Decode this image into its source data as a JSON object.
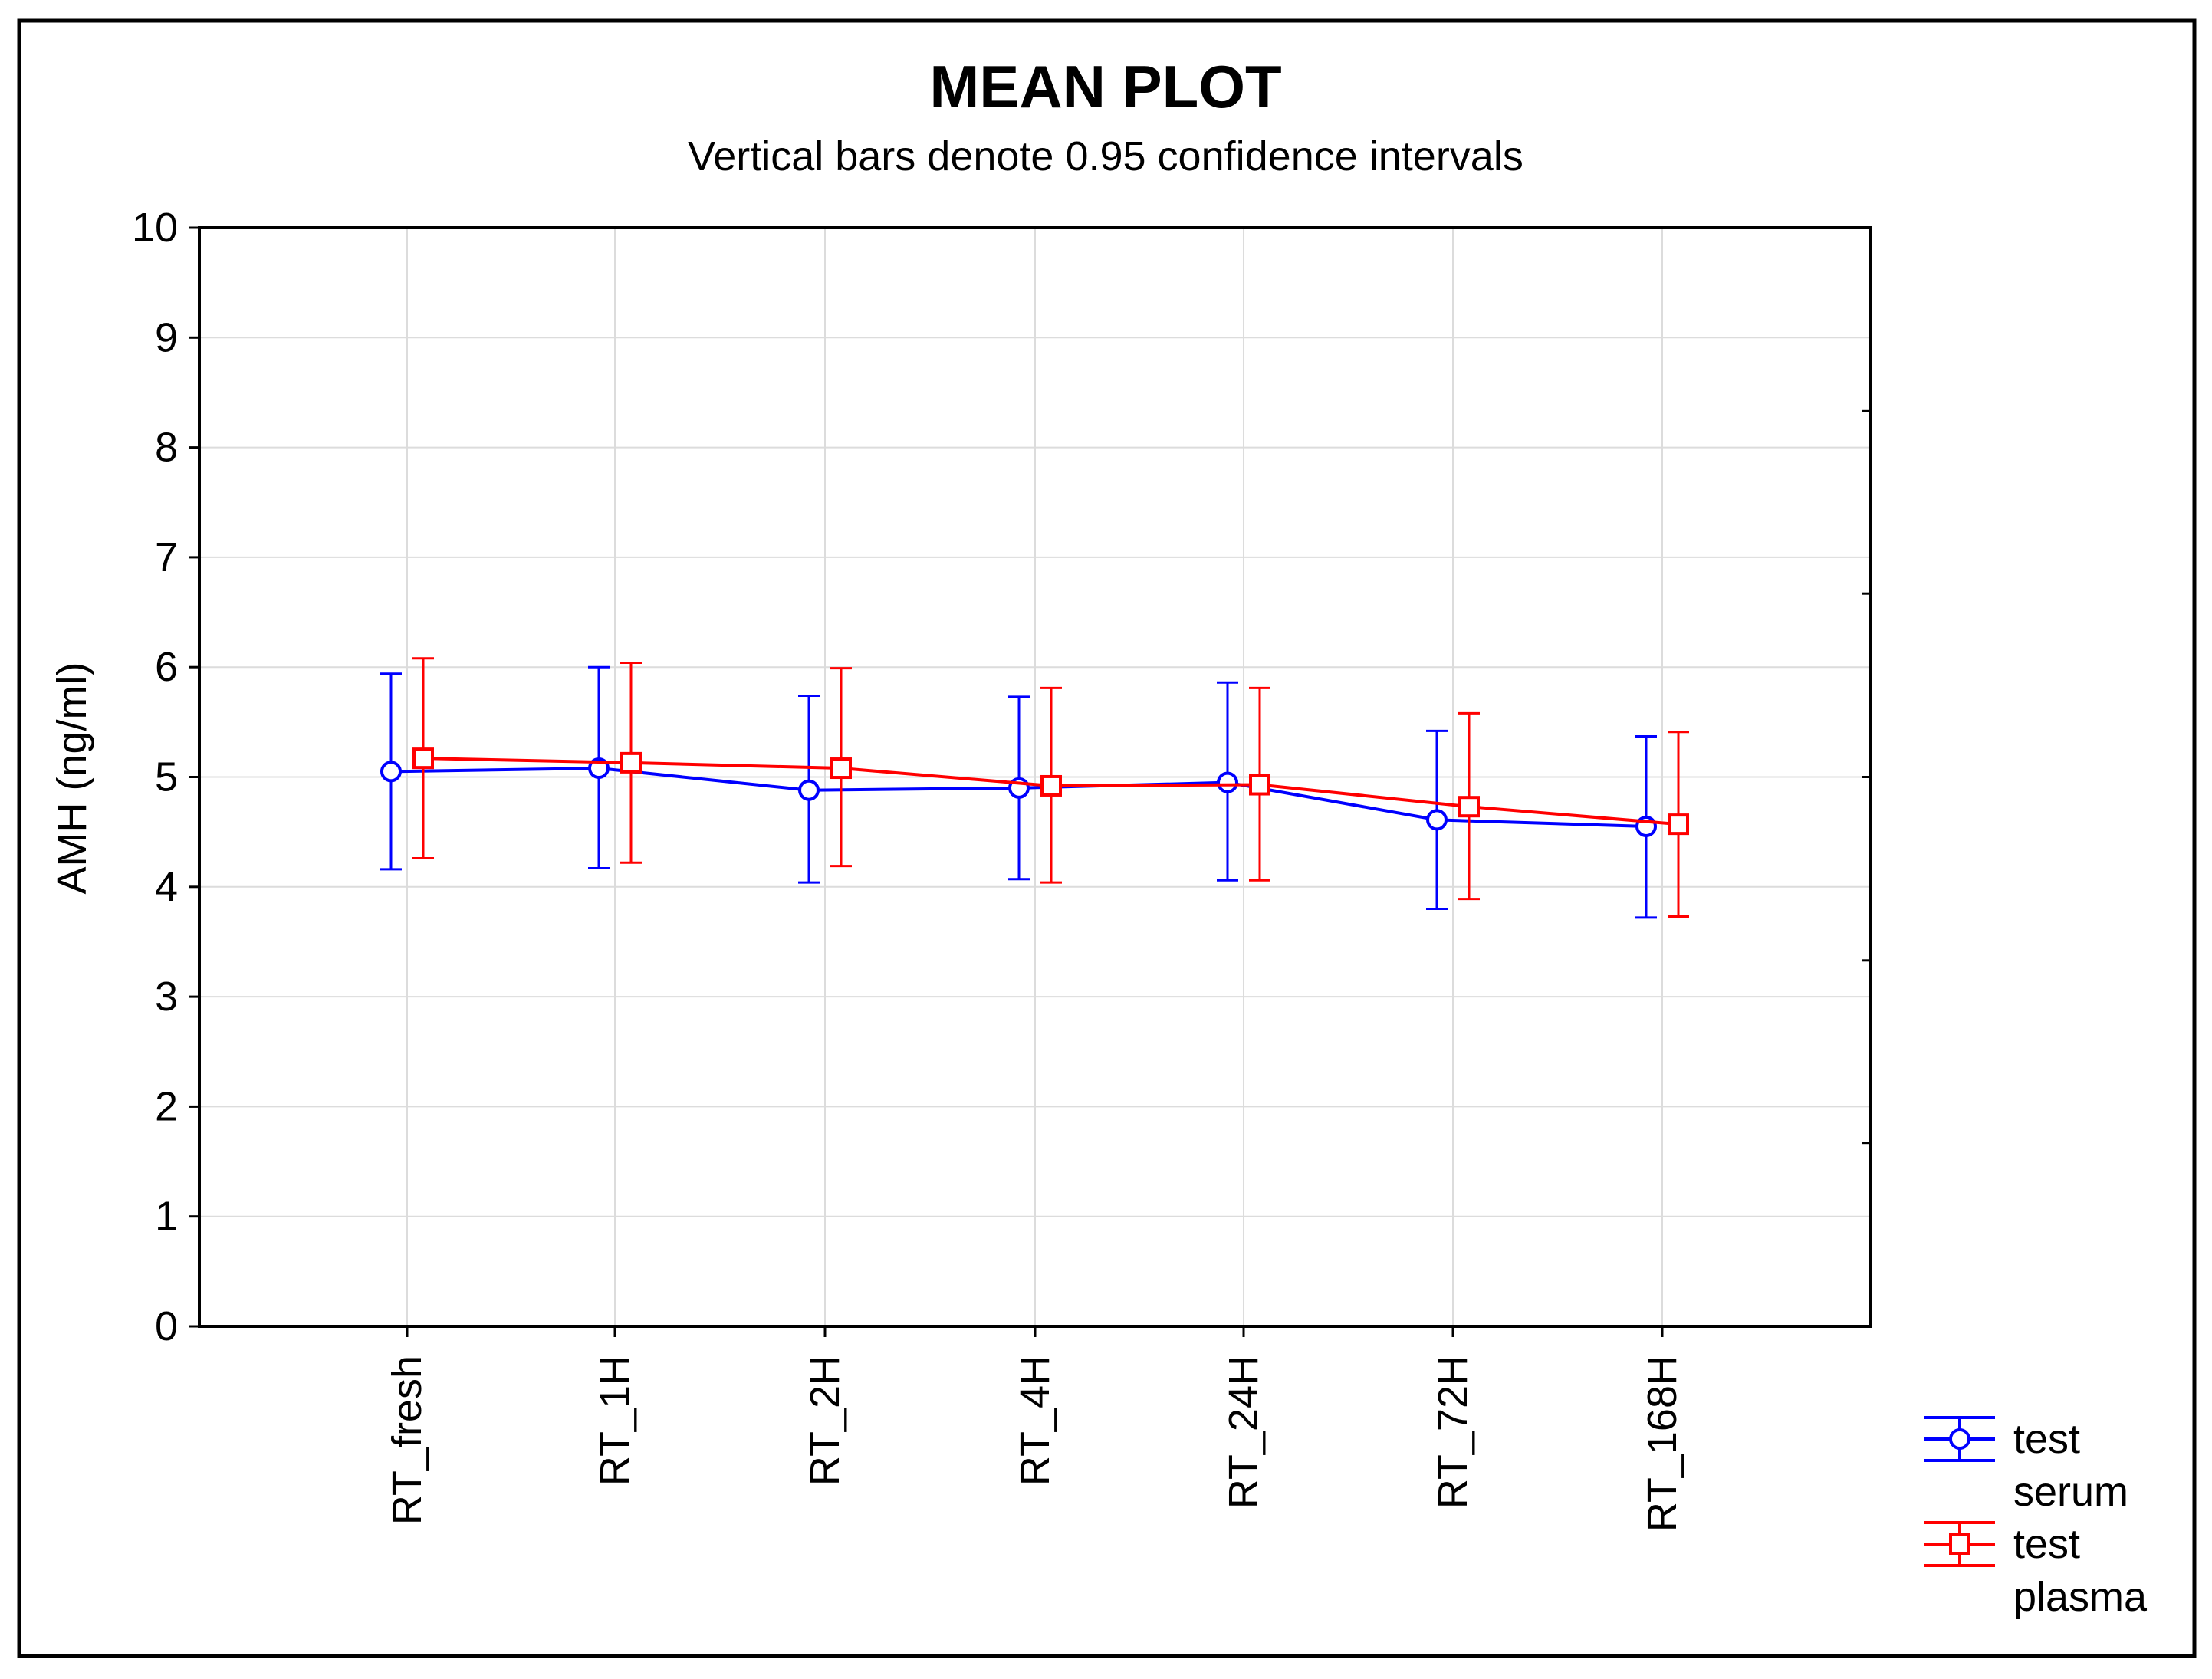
{
  "chart_data": {
    "type": "line",
    "title": "MEAN PLOT",
    "subtitle": "Vertical bars denote 0.95 confidence intervals",
    "xlabel": "",
    "ylabel": "AMH (ng/ml)",
    "ylim": [
      0,
      10
    ],
    "yticks": [
      "0",
      "1",
      "2",
      "3",
      "4",
      "5",
      "6",
      "7",
      "8",
      "9",
      "10"
    ],
    "grid": true,
    "legend_position": "bottom-right, outside plot",
    "categories": [
      "RT_fresh",
      "RT_1H",
      "RT_2H",
      "RT_4H",
      "RT_24H",
      "RT_72H",
      "RT_168H"
    ],
    "series": [
      {
        "name": "test serum",
        "legend_lines": [
          "test",
          "serum"
        ],
        "marker": "circle",
        "color": "#0000ff",
        "values": [
          5.05,
          5.08,
          4.88,
          4.9,
          4.95,
          4.61,
          4.55
        ],
        "ci_lower": [
          4.16,
          4.17,
          4.04,
          4.07,
          4.06,
          3.8,
          3.72
        ],
        "ci_upper": [
          5.94,
          6.0,
          5.74,
          5.73,
          5.86,
          5.42,
          5.37
        ]
      },
      {
        "name": "test plasma",
        "legend_lines": [
          "test",
          "plasma"
        ],
        "marker": "square",
        "color": "#ff0000",
        "values": [
          5.17,
          5.13,
          5.08,
          4.92,
          4.93,
          4.73,
          4.57
        ],
        "ci_lower": [
          4.26,
          4.22,
          4.19,
          4.04,
          4.06,
          3.89,
          3.73
        ],
        "ci_upper": [
          6.08,
          6.04,
          5.99,
          5.81,
          5.81,
          5.58,
          5.41
        ]
      }
    ]
  }
}
